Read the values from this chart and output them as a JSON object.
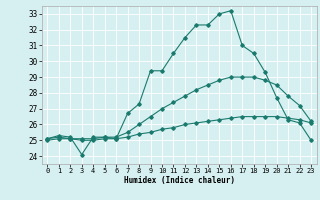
{
  "title": "",
  "xlabel": "Humidex (Indice chaleur)",
  "ylabel": "",
  "bg_color": "#d6eff0",
  "grid_color": "#ffffff",
  "line_color": "#1a7a6e",
  "ylim": [
    23.5,
    33.5
  ],
  "xlim": [
    -0.5,
    23.5
  ],
  "yticks": [
    24,
    25,
    26,
    27,
    28,
    29,
    30,
    31,
    32,
    33
  ],
  "xticks": [
    0,
    1,
    2,
    3,
    4,
    5,
    6,
    7,
    8,
    9,
    10,
    11,
    12,
    13,
    14,
    15,
    16,
    17,
    18,
    19,
    20,
    21,
    22,
    23
  ],
  "line1_x": [
    0,
    1,
    2,
    3,
    4,
    5,
    6,
    7,
    8,
    9,
    10,
    11,
    12,
    13,
    14,
    15,
    16,
    17,
    18,
    19,
    20,
    21,
    22,
    23
  ],
  "line1_y": [
    25.1,
    25.3,
    25.2,
    24.1,
    25.2,
    25.2,
    25.1,
    26.7,
    27.3,
    29.4,
    29.4,
    30.5,
    31.5,
    32.3,
    32.3,
    33.0,
    33.2,
    31.0,
    30.5,
    29.3,
    27.7,
    26.3,
    26.1,
    25.0
  ],
  "line2_x": [
    0,
    1,
    2,
    3,
    4,
    5,
    6,
    7,
    8,
    9,
    10,
    11,
    12,
    13,
    14,
    15,
    16,
    17,
    18,
    19,
    20,
    21,
    22,
    23
  ],
  "line2_y": [
    25.1,
    25.2,
    25.1,
    25.1,
    25.1,
    25.2,
    25.2,
    25.5,
    26.0,
    26.5,
    27.0,
    27.4,
    27.8,
    28.2,
    28.5,
    28.8,
    29.0,
    29.0,
    29.0,
    28.8,
    28.5,
    27.8,
    27.2,
    26.2
  ],
  "line3_x": [
    0,
    1,
    2,
    3,
    4,
    5,
    6,
    7,
    8,
    9,
    10,
    11,
    12,
    13,
    14,
    15,
    16,
    17,
    18,
    19,
    20,
    21,
    22,
    23
  ],
  "line3_y": [
    25.0,
    25.1,
    25.1,
    25.0,
    25.0,
    25.1,
    25.1,
    25.2,
    25.4,
    25.5,
    25.7,
    25.8,
    26.0,
    26.1,
    26.2,
    26.3,
    26.4,
    26.5,
    26.5,
    26.5,
    26.5,
    26.4,
    26.3,
    26.1
  ],
  "xlabel_fontsize": 5.5,
  "tick_fontsize": 5.0,
  "linewidth": 0.8,
  "markersize": 1.8
}
